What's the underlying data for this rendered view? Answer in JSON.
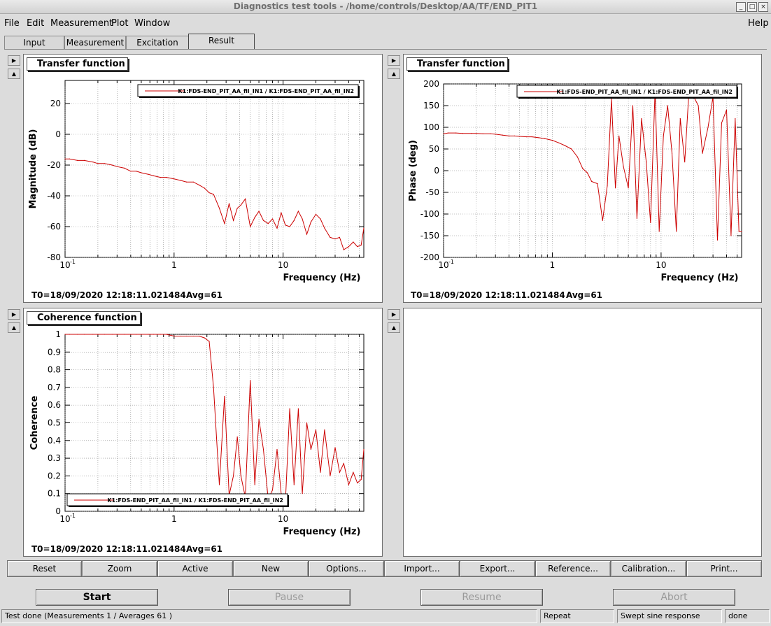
{
  "window": {
    "title": "Diagnostics test tools - /home/controls/Desktop/AA/TF/END_PIT1",
    "controls": [
      "_",
      "□",
      "×"
    ]
  },
  "menu": {
    "file": "File",
    "edit": "Edit",
    "measurement": "Measurement",
    "plot": "Plot",
    "window": "Window",
    "help": "Help"
  },
  "tabs": [
    "Input",
    "Measurement",
    "Excitation",
    "Result"
  ],
  "active_tab": "Result",
  "panels": {
    "magnitude": {
      "title": "Transfer function",
      "ylabel": "Magnitude (dB)",
      "xlabel": "Frequency (Hz)",
      "legend": "K1:FDS-END_PIT_AA_fil_IN1 / K1:FDS-END_PIT_AA_fil_IN2",
      "t0": "T0=18/09/2020 12:18:11.021484",
      "avg": "Avg=61",
      "yticks": [
        "20",
        "0",
        "-20",
        "-40",
        "-60",
        "-80"
      ],
      "xticks": [
        "10",
        "1",
        "10"
      ]
    },
    "phase": {
      "title": "Transfer function",
      "ylabel": "Phase (deg)",
      "xlabel": "Frequency (Hz)",
      "legend": "K1:FDS-END_PIT_AA_fil_IN1 / K1:FDS-END_PIT_AA_fil_IN2",
      "t0": "T0=18/09/2020 12:18:11.021484",
      "avg": "Avg=61",
      "yticks": [
        "200",
        "150",
        "100",
        "50",
        "0",
        "-50",
        "-100",
        "-150",
        "-200"
      ],
      "xticks": [
        "10",
        "1",
        "10"
      ]
    },
    "coherence": {
      "title": "Coherence function",
      "ylabel": "Coherence",
      "xlabel": "Frequency (Hz)",
      "legend": "K1:FDS-END_PIT_AA_fil_IN1 / K1:FDS-END_PIT_AA_fil_IN2",
      "t0": "T0=18/09/2020 12:18:11.021484",
      "avg": "Avg=61",
      "yticks": [
        "1",
        "0.9",
        "0.8",
        "0.7",
        "0.6",
        "0.5",
        "0.4",
        "0.3",
        "0.2",
        "0.1",
        "0"
      ],
      "xticks": [
        "10",
        "1",
        "10"
      ]
    }
  },
  "toolbar": [
    "Reset",
    "Zoom",
    "Active",
    "New",
    "Options...",
    "Import...",
    "Export...",
    "Reference...",
    "Calibration...",
    "Print..."
  ],
  "actions": {
    "start": "Start",
    "pause": "Pause",
    "resume": "Resume",
    "abort": "Abort"
  },
  "status": {
    "message": "Test done (Measurements 1 / Averages 61 )",
    "repeat": "Repeat",
    "type": "Swept sine response",
    "state": "done"
  },
  "colors": {
    "trace": "#cc0000",
    "grid": "#888888",
    "background": "#dcdcdc"
  },
  "chart_data": [
    {
      "type": "line",
      "title": "Transfer function",
      "xlabel": "Frequency (Hz)",
      "ylabel": "Magnitude (dB)",
      "xscale": "log",
      "xlim": [
        0.1,
        55
      ],
      "ylim": [
        -80,
        35
      ],
      "grid": true,
      "legend_position": "top-right",
      "series": [
        {
          "name": "K1:FDS-END_PIT_AA_fil_IN1 / K1:FDS-END_PIT_AA_fil_IN2",
          "x": [
            0.1,
            0.11,
            0.13,
            0.15,
            0.18,
            0.2,
            0.23,
            0.27,
            0.3,
            0.35,
            0.4,
            0.45,
            0.5,
            0.58,
            0.65,
            0.75,
            0.85,
            1.0,
            1.15,
            1.3,
            1.5,
            1.7,
            1.9,
            2.1,
            2.3,
            2.6,
            2.9,
            3.2,
            3.5,
            3.8,
            4.1,
            4.5,
            5.0,
            5.5,
            6.0,
            6.6,
            7.3,
            8.0,
            8.8,
            9.6,
            10.5,
            11.5,
            12.6,
            13.8,
            15,
            16.5,
            18,
            20,
            22,
            24,
            27,
            30,
            33,
            36,
            40,
            44,
            48,
            52,
            55
          ],
          "y": [
            -16,
            -16,
            -17,
            -17,
            -18,
            -19,
            -19,
            -20,
            -21,
            -22,
            -24,
            -24,
            -25,
            -26,
            -27,
            -28,
            -28,
            -29,
            -30,
            -31,
            -31,
            -33,
            -35,
            -38,
            -39,
            -48,
            -58,
            -45,
            -56,
            -48,
            -46,
            -42,
            -60,
            -54,
            -50,
            -56,
            -58,
            -55,
            -61,
            -51,
            -59,
            -60,
            -56,
            -50,
            -55,
            -65,
            -57,
            -52,
            -55,
            -61,
            -67,
            -68,
            -67,
            -75,
            -73,
            -70,
            -73,
            -72,
            -61
          ]
        }
      ]
    },
    {
      "type": "line",
      "title": "Transfer function",
      "xlabel": "Frequency (Hz)",
      "ylabel": "Phase (deg)",
      "xscale": "log",
      "xlim": [
        0.1,
        55
      ],
      "ylim": [
        -200,
        200
      ],
      "grid": true,
      "legend_position": "top-right",
      "series": [
        {
          "name": "K1:FDS-END_PIT_AA_fil_IN1 / K1:FDS-END_PIT_AA_fil_IN2",
          "x": [
            0.1,
            0.11,
            0.13,
            0.15,
            0.18,
            0.2,
            0.23,
            0.27,
            0.3,
            0.35,
            0.4,
            0.45,
            0.5,
            0.58,
            0.65,
            0.75,
            0.85,
            1.0,
            1.15,
            1.3,
            1.5,
            1.7,
            1.9,
            2.1,
            2.3,
            2.6,
            2.9,
            3.2,
            3.5,
            3.8,
            4.1,
            4.5,
            5.0,
            5.5,
            6.0,
            6.6,
            7.3,
            8.0,
            8.8,
            9.6,
            10.5,
            11.5,
            12.6,
            13.8,
            15,
            16.5,
            18,
            20,
            22,
            24,
            27,
            30,
            33,
            36,
            40,
            44,
            48,
            52,
            55
          ],
          "y": [
            85,
            87,
            87,
            86,
            86,
            86,
            85,
            85,
            84,
            82,
            80,
            80,
            79,
            78,
            78,
            76,
            74,
            70,
            64,
            58,
            50,
            32,
            5,
            -5,
            -25,
            -30,
            -115,
            -35,
            165,
            -40,
            80,
            10,
            -40,
            150,
            -110,
            120,
            20,
            -120,
            185,
            -140,
            80,
            150,
            40,
            -140,
            120,
            20,
            180,
            170,
            150,
            40,
            100,
            170,
            -160,
            110,
            140,
            -150,
            120,
            -140,
            -140
          ]
        }
      ]
    },
    {
      "type": "line",
      "title": "Coherence function",
      "xlabel": "Frequency (Hz)",
      "ylabel": "Coherence",
      "xscale": "log",
      "xlim": [
        0.1,
        55
      ],
      "ylim": [
        0,
        1
      ],
      "grid": true,
      "legend_position": "bottom-left",
      "series": [
        {
          "name": "K1:FDS-END_PIT_AA_fil_IN1 / K1:FDS-END_PIT_AA_fil_IN2",
          "x": [
            0.1,
            0.11,
            0.13,
            0.15,
            0.18,
            0.2,
            0.23,
            0.27,
            0.3,
            0.35,
            0.4,
            0.45,
            0.5,
            0.58,
            0.65,
            0.75,
            0.85,
            1.0,
            1.15,
            1.3,
            1.5,
            1.7,
            1.9,
            2.1,
            2.3,
            2.6,
            2.9,
            3.2,
            3.5,
            3.8,
            4.1,
            4.5,
            5.0,
            5.5,
            6.0,
            6.6,
            7.3,
            8.0,
            8.8,
            9.6,
            10.5,
            11.5,
            12.6,
            13.8,
            15,
            16.5,
            18,
            20,
            22,
            24,
            27,
            30,
            33,
            36,
            40,
            44,
            48,
            52,
            55
          ],
          "y": [
            1.0,
            1.0,
            1.0,
            1.0,
            1.0,
            1.0,
            1.0,
            1.0,
            1.0,
            1.0,
            1.0,
            1.0,
            1.0,
            1.0,
            1.0,
            1.0,
            1.0,
            0.99,
            0.99,
            0.99,
            0.99,
            0.99,
            0.98,
            0.96,
            0.7,
            0.15,
            0.65,
            0.09,
            0.2,
            0.42,
            0.2,
            0.08,
            0.74,
            0.15,
            0.52,
            0.35,
            0.07,
            0.12,
            0.35,
            0.1,
            0.05,
            0.58,
            0.15,
            0.58,
            0.1,
            0.5,
            0.35,
            0.46,
            0.22,
            0.46,
            0.2,
            0.36,
            0.22,
            0.27,
            0.15,
            0.22,
            0.16,
            0.18,
            0.35
          ]
        }
      ]
    }
  ]
}
